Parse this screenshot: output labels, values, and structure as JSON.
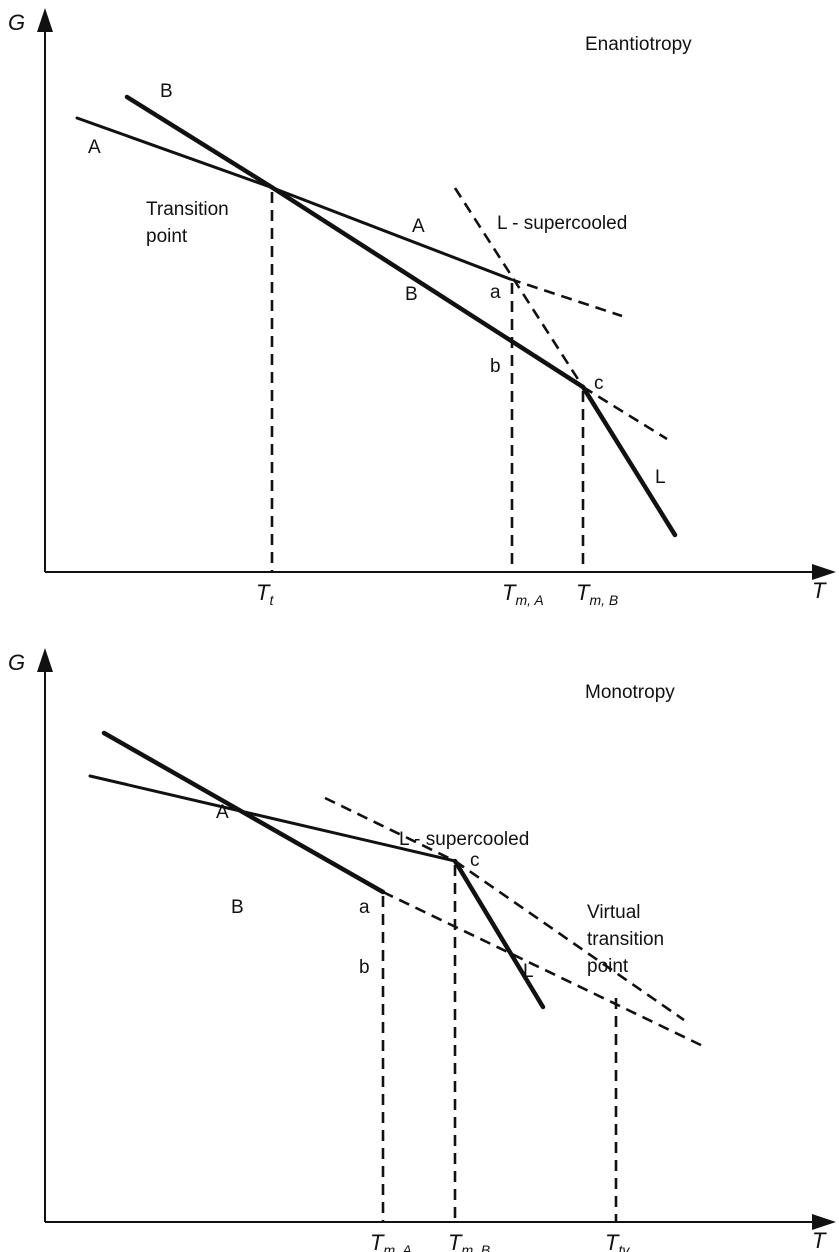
{
  "axes": {
    "y_label": "G",
    "x_label": "T"
  },
  "top": {
    "title": "Enantiotropy",
    "line_labels": {
      "A1": "A",
      "B1": "B",
      "A2": "A",
      "B2": "B",
      "L": "L"
    },
    "liquid_label": "L - supercooled",
    "transition_label": [
      "Transition",
      "point"
    ],
    "point_labels": {
      "a": "a",
      "b": "b",
      "c": "c"
    },
    "ticks": [
      {
        "main": "T",
        "sub": "t"
      },
      {
        "main": "T",
        "sub": "m, A"
      },
      {
        "main": "T",
        "sub": "m, B"
      }
    ]
  },
  "bottom": {
    "title": "Monotropy",
    "line_labels": {
      "A": "A",
      "B": "B",
      "L": "L"
    },
    "liquid_label": "L - supercooled",
    "transition_label": [
      "Virtual",
      "transition",
      "point"
    ],
    "point_labels": {
      "a": "a",
      "b": "b",
      "c": "c"
    },
    "ticks": [
      {
        "main": "T",
        "sub": "m, A"
      },
      {
        "main": "T",
        "sub": "m, B"
      },
      {
        "main": "T",
        "sub": "tv"
      }
    ]
  }
}
